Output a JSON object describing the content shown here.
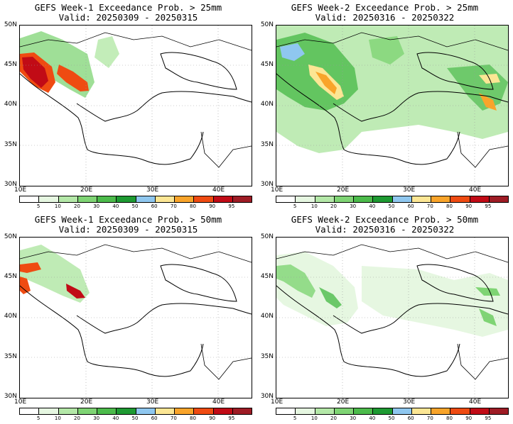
{
  "panels": [
    {
      "id": "w1-25",
      "title1": "GEFS Week-1 Exceedance Prob. > 25mm",
      "title2": "Valid: 20250309 - 20250315"
    },
    {
      "id": "w2-25",
      "title1": "GEFS Week-2 Exceedance Prob. > 25mm",
      "title2": "Valid: 20250316 - 20250322"
    },
    {
      "id": "w1-50",
      "title1": "GEFS Week-1 Exceedance Prob. > 50mm",
      "title2": "Valid: 20250309 - 20250315"
    },
    {
      "id": "w2-50",
      "title1": "GEFS Week-2 Exceedance Prob. > 50mm",
      "title2": "Valid: 20250316 - 20250322"
    }
  ],
  "lat_labels": [
    "50N",
    "45N",
    "40N",
    "35N",
    "30N"
  ],
  "lon_labels": [
    "10E",
    "20E",
    "30E",
    "40E"
  ],
  "colorbar": {
    "labels": [
      "5",
      "10",
      "20",
      "30",
      "40",
      "50",
      "60",
      "70",
      "80",
      "90",
      "95"
    ],
    "colors": [
      "#ffffff",
      "#e6f7e1",
      "#b4e8a8",
      "#7fd474",
      "#4cbb4b",
      "#1e9a32",
      "#8fc7ef",
      "#fce694",
      "#f9a42a",
      "#ef4b12",
      "#c10b16",
      "#9e1c25"
    ]
  }
}
